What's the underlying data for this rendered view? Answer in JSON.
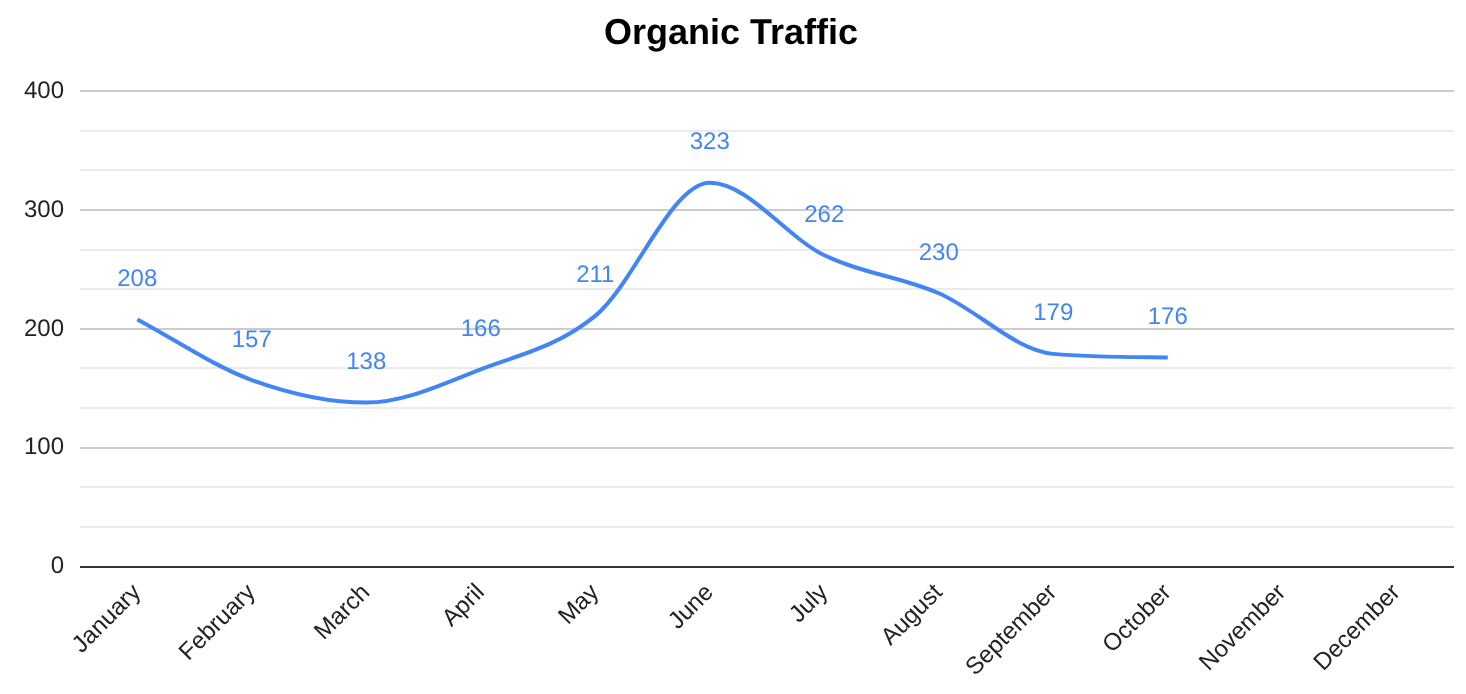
{
  "chart_data": {
    "type": "line",
    "title": "Organic Traffic",
    "categories": [
      "January",
      "February",
      "March",
      "April",
      "May",
      "June",
      "July",
      "August",
      "September",
      "October",
      "November",
      "December"
    ],
    "values": [
      208,
      157,
      138,
      166,
      211,
      323,
      262,
      230,
      179,
      176,
      null,
      null
    ],
    "color": "#4285f4",
    "ylim": [
      0,
      400
    ],
    "yticks": [
      0,
      {
        "value": 33.3,
        "label": null
      },
      {
        "value": 66.7,
        "label": null
      },
      100,
      {
        "value": 133.3,
        "label": null
      },
      {
        "value": 166.7,
        "label": null
      },
      200,
      {
        "value": 233.3,
        "label": null
      },
      {
        "value": 266.7,
        "label": null
      },
      300,
      {
        "value": 333.3,
        "label": null
      },
      {
        "value": 366.7,
        "label": null
      },
      400
    ],
    "grid": "y",
    "marker": "none",
    "data_labels": true
  }
}
